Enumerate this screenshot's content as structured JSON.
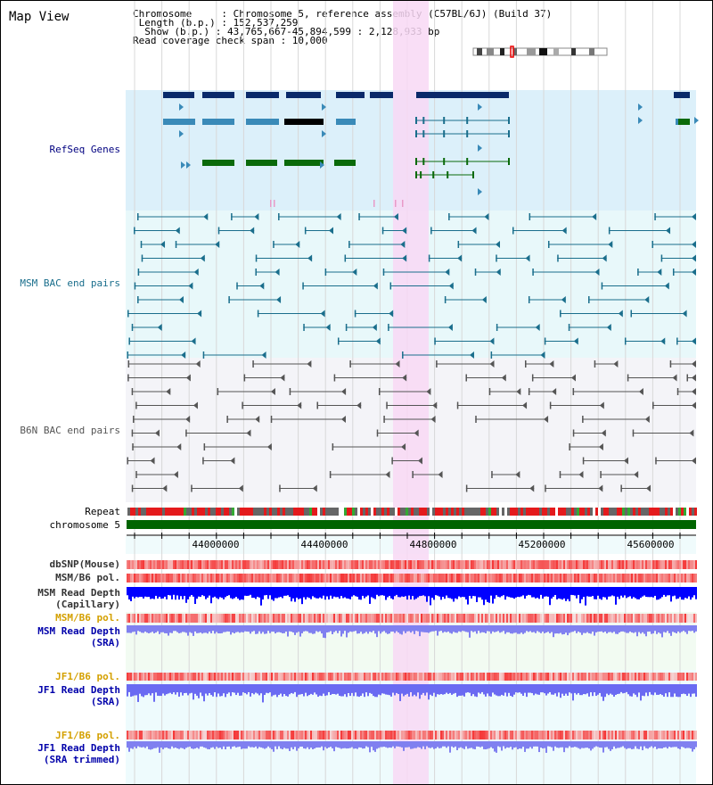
{
  "view": {
    "title": "Map View",
    "info": {
      "chromosome_line": "Chromosome     : Chromosome 5, reference assembly (C57BL/6J) (Build 37)",
      "length_line": " Length (b.p.) : 152,537,259",
      "show_line": "  Show (b.p.) : 43,765,667-45,894,599 : 2,128,933 bp",
      "coverage_line": "Read coverage check span : 10,000"
    }
  },
  "tracks": {
    "refseq": {
      "label": "RefSeq Genes",
      "color": "#000080"
    },
    "msm_bac": {
      "label": "MSM BAC end pairs",
      "color": "#1a6e8c"
    },
    "b6n_bac": {
      "label": "B6N BAC end pairs",
      "color": "#555555"
    },
    "repeat": {
      "label": "Repeat"
    },
    "chromosome": {
      "label": "chromosome 5"
    },
    "axis": {
      "ticks": [
        "44000000",
        "44400000",
        "44800000",
        "45200000",
        "45600000"
      ]
    },
    "dbsnp": {
      "label": "dbSNP(Mouse)"
    },
    "msm_b6_pol_1": {
      "label": "MSM/B6 pol."
    },
    "msm_depth_cap": {
      "label1": "MSM Read Depth",
      "label2": "(Capillary)"
    },
    "msm_b6_pol_2": {
      "label": "MSM/B6 pol.",
      "color": "#d4a000"
    },
    "msm_depth_sra": {
      "label1": "MSM Read Depth",
      "label2": "(SRA)",
      "color": "#0000aa"
    },
    "jf1_b6_pol_1": {
      "label": "JF1/B6 pol.",
      "color": "#d4a000"
    },
    "jf1_depth_sra": {
      "label1": "JF1 Read Depth",
      "label2": "(SRA)",
      "color": "#0000aa"
    },
    "jf1_b6_pol_2": {
      "label": "JF1/B6 pol.",
      "color": "#d4a000"
    },
    "jf1_depth_trim": {
      "label1": "JF1 Read Depth",
      "label2": "(SRA trimmed)",
      "color": "#0000aa"
    }
  },
  "colors": {
    "refseq_bg": "#dcf0fa",
    "msm_bg": "#e8f8fa",
    "b6n_bg": "#f4f4f8",
    "highlight": "#f8d8f4",
    "gene_dark": "#0a2a6a",
    "gene_mid": "#3a8ab8",
    "gene_green": "#0a6a0a",
    "chromosome": "#006400",
    "depth_blue": "#0000ff",
    "depth_lilac": "#8080f0"
  }
}
